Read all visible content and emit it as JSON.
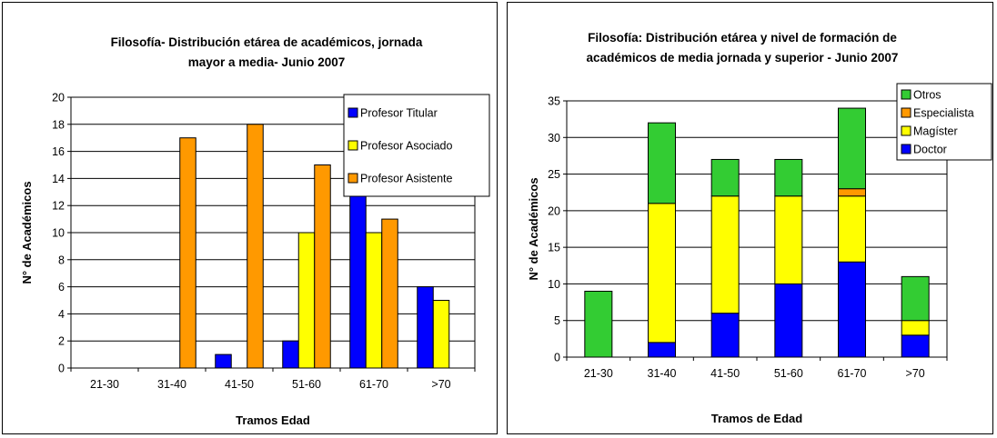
{
  "chart_data": [
    {
      "type": "bar",
      "title_lines": [
        "Filosofía- Distribución etárea de académicos, jornada",
        "mayor a media- Junio 2007"
      ],
      "xlabel": "Tramos Edad",
      "ylabel": "N° de Académicos",
      "ylim": [
        0,
        20
      ],
      "yticks": [
        "0",
        "2",
        "4",
        "6",
        "8",
        "10",
        "12",
        "14",
        "16",
        "18",
        "20"
      ],
      "grid": true,
      "legend_position": "top-right",
      "categories": [
        "21-30",
        "31-40",
        "41-50",
        "51-60",
        "61-70",
        ">70"
      ],
      "series": [
        {
          "name": "Profesor Titular",
          "color": "#0000ff",
          "values": [
            0,
            0,
            1,
            2,
            13,
            6
          ]
        },
        {
          "name": "Profesor Asociado",
          "color": "#ffff00",
          "values": [
            0,
            0,
            0,
            10,
            10,
            5
          ]
        },
        {
          "name": "Profesor Asistente",
          "color": "#ff9900",
          "values": [
            0,
            17,
            18,
            15,
            11,
            0
          ]
        }
      ]
    },
    {
      "type": "bar",
      "stacked": true,
      "title_lines": [
        "Filosofía: Distribución etárea y nivel de formación de",
        "académicos de media jornada y superior - Junio 2007"
      ],
      "xlabel": "Tramos de Edad",
      "ylabel": "N° de Académicos",
      "ylim": [
        0,
        35
      ],
      "yticks": [
        "0",
        "5",
        "10",
        "15",
        "20",
        "25",
        "30",
        "35"
      ],
      "grid": true,
      "legend_position": "top-right",
      "categories": [
        "21-30",
        "31-40",
        "41-50",
        "51-60",
        "61-70",
        ">70"
      ],
      "series": [
        {
          "name": "Doctor",
          "color": "#0000ff",
          "values": [
            0,
            2,
            6,
            10,
            13,
            3
          ]
        },
        {
          "name": "Magíster",
          "color": "#ffff00",
          "values": [
            0,
            19,
            16,
            12,
            9,
            2
          ]
        },
        {
          "name": "Especialista",
          "color": "#ff9900",
          "values": [
            0,
            0,
            0,
            0,
            1,
            0
          ]
        },
        {
          "name": "Otros",
          "color": "#33cc33",
          "values": [
            9,
            11,
            5,
            5,
            11,
            6
          ]
        }
      ]
    }
  ]
}
